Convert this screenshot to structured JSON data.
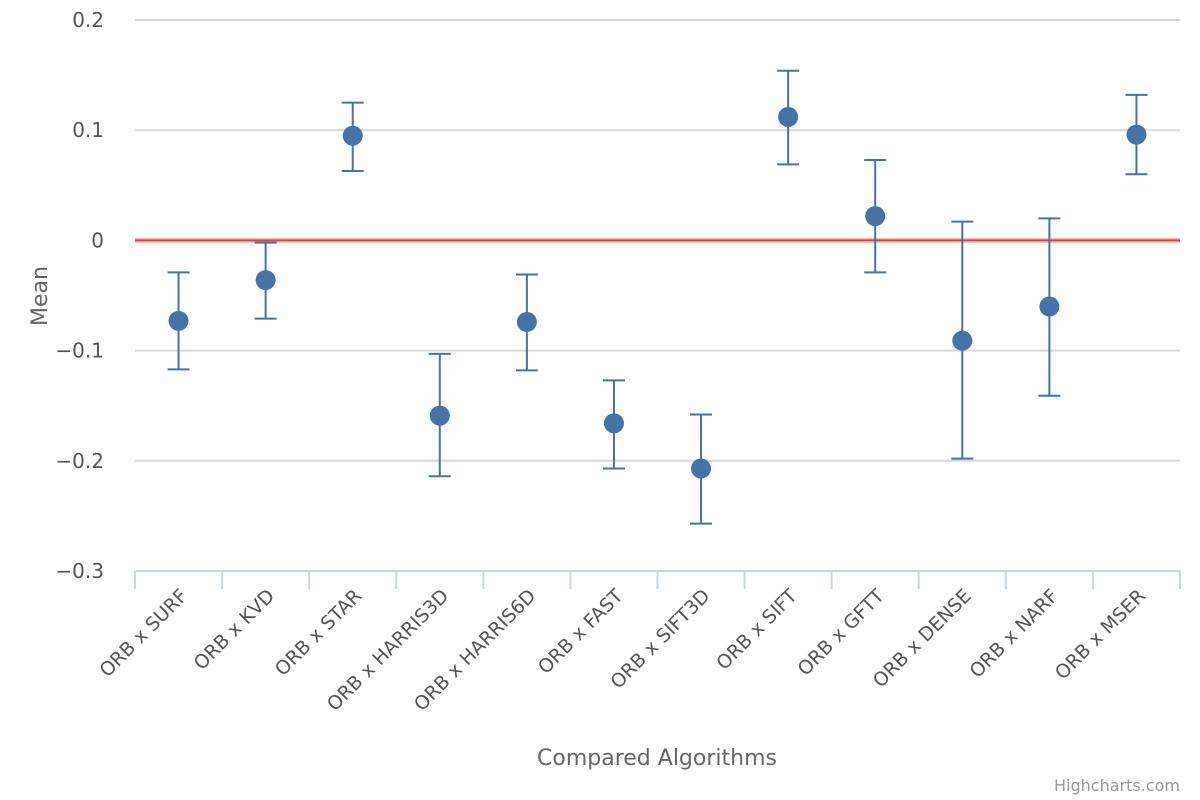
{
  "chart_data": {
    "type": "scatter",
    "title": "",
    "xlabel": "Compared Algorithms",
    "ylabel": "Mean",
    "ylim": [
      -0.3,
      0.2
    ],
    "yticks": [
      0.2,
      0.1,
      0,
      -0.1,
      -0.2,
      -0.3
    ],
    "ytick_labels": [
      "0.2",
      "0.1",
      "0",
      "−0.1",
      "−0.2",
      "−0.3"
    ],
    "grid": true,
    "legend": "none",
    "reference_line": {
      "y": 0,
      "color": "#e0433b"
    },
    "categories": [
      "ORB x SURF",
      "ORB x KVD",
      "ORB x STAR",
      "ORB x HARRIS3D",
      "ORB x HARRIS6D",
      "ORB x FAST",
      "ORB x SIFT3D",
      "ORB x SIFT",
      "ORB x GFTT",
      "ORB x DENSE",
      "ORB x NARF",
      "ORB x MSER"
    ],
    "series": [
      {
        "values": [
          -0.073,
          -0.036,
          0.095,
          -0.159,
          -0.074,
          -0.166,
          -0.207,
          0.112,
          0.022,
          -0.091,
          -0.06,
          0.096
        ],
        "error_low": [
          -0.117,
          -0.071,
          0.063,
          -0.214,
          -0.118,
          -0.207,
          -0.257,
          0.069,
          -0.029,
          -0.198,
          -0.141,
          0.06
        ],
        "error_high": [
          -0.029,
          -0.002,
          0.125,
          -0.103,
          -0.031,
          -0.127,
          -0.158,
          0.154,
          0.073,
          0.017,
          0.02,
          0.132
        ],
        "color": "#4572a7"
      }
    ]
  },
  "credits": "Highcharts.com"
}
